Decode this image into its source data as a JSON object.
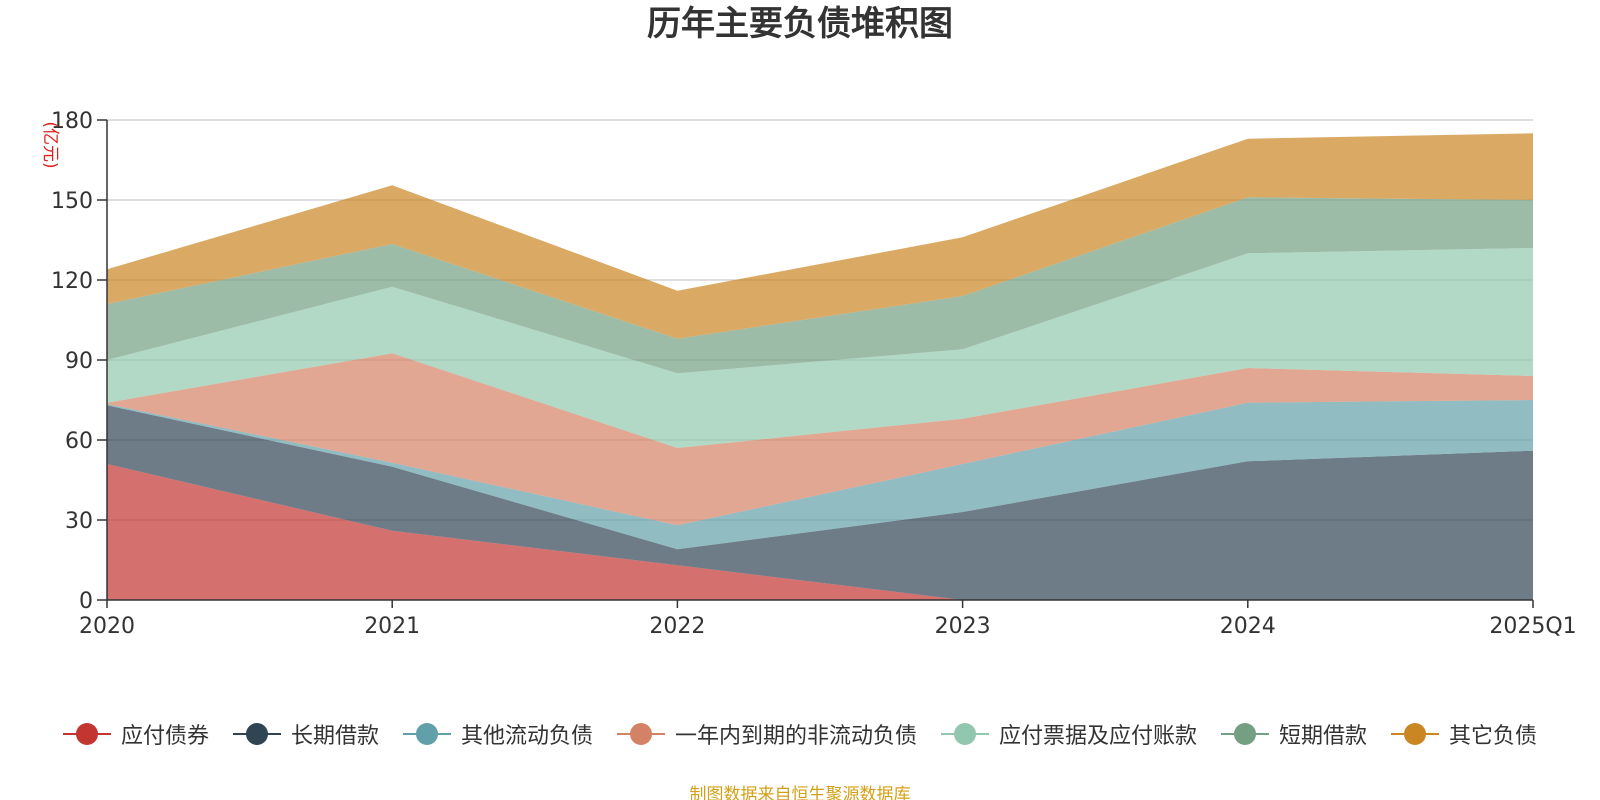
{
  "chart_data": {
    "type": "area",
    "stacked": true,
    "title": "历年主要负债堆积图",
    "unit_label": "(亿元)",
    "categories": [
      "2020",
      "2021",
      "2022",
      "2023",
      "2024",
      "2025Q1"
    ],
    "y_ticks": [
      "0",
      "30",
      "60",
      "90",
      "120",
      "150",
      "180"
    ],
    "ylim": [
      0,
      180
    ],
    "grid": true,
    "legend_position": "bottom",
    "series": [
      {
        "name": "应付债券",
        "color": "#c23531",
        "values": [
          51,
          26,
          13,
          0,
          0,
          0
        ]
      },
      {
        "name": "长期借款",
        "color": "#2f4554",
        "values": [
          22,
          24,
          6,
          33,
          52,
          56
        ]
      },
      {
        "name": "其他流动负债",
        "color": "#61a0a8",
        "values": [
          0.5,
          1.5,
          9,
          18,
          22,
          19
        ]
      },
      {
        "name": "一年内到期的非流动负债",
        "color": "#d48265",
        "values": [
          0.5,
          41,
          29,
          17,
          13,
          9
        ]
      },
      {
        "name": "应付票据及应付账款",
        "color": "#91c7ae",
        "values": [
          16,
          25,
          28,
          26,
          43,
          48
        ]
      },
      {
        "name": "短期借款",
        "color": "#749f83",
        "values": [
          21,
          16,
          13,
          20,
          21,
          18
        ]
      },
      {
        "name": "其它负债",
        "color": "#ca8622",
        "values": [
          13,
          22,
          18,
          22,
          22,
          25
        ]
      }
    ]
  },
  "source_note": "制图数据来自恒生聚源数据库"
}
